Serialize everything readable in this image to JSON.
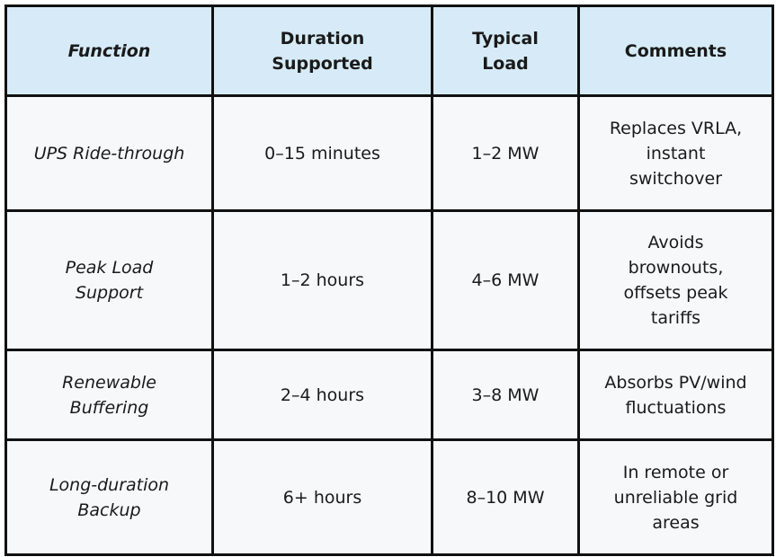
{
  "table": {
    "headers": {
      "function": "Function",
      "duration": "Duration Supported",
      "load": "Typical Load",
      "comments": "Comments"
    },
    "rows": [
      {
        "function": "UPS Ride-through",
        "duration": "0–15 minutes",
        "load": "1–2 MW",
        "comments": "Replaces VRLA, instant switchover"
      },
      {
        "function": "Peak Load Support",
        "duration": "1–2 hours",
        "load": "4–6 MW",
        "comments": "Avoids brownouts, offsets peak tariffs"
      },
      {
        "function": "Renewable Buffering",
        "duration": "2–4 hours",
        "load": "3–8 MW",
        "comments": "Absorbs PV/wind fluctuations"
      },
      {
        "function": "Long-duration Backup",
        "duration": "6+ hours",
        "load": "8–10 MW",
        "comments": "In remote or unreliable grid areas"
      }
    ]
  }
}
